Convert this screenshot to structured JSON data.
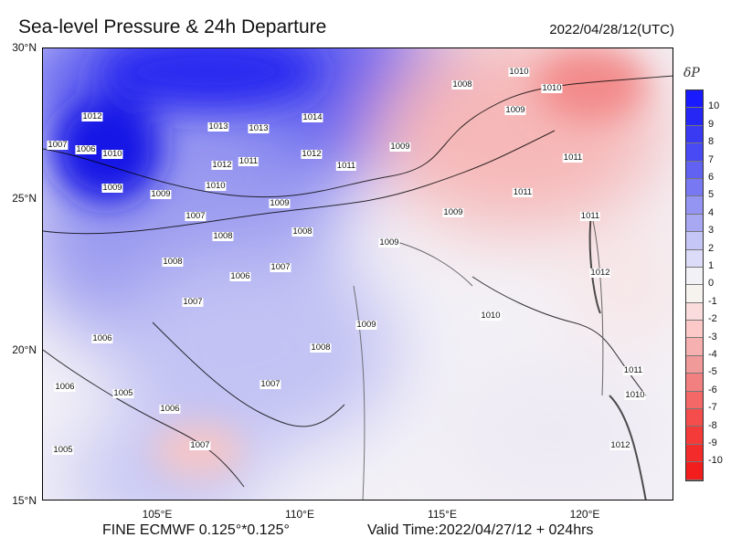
{
  "title": "Sea-level Pressure & 24h Departure",
  "date": "2022/04/28/12(UTC)",
  "footer_left": "FINE ECMWF 0.125°*0.125°",
  "footer_right": "Valid Time:2022/04/27/12 + 024hrs",
  "lat_labels": [
    "30°N",
    "25°N",
    "20°N",
    "15°N"
  ],
  "lon_labels": [
    "105°E",
    "110°E",
    "115°E",
    "120°E"
  ],
  "colorbar": {
    "title": "δP",
    "labels": [
      "10",
      "9",
      "8",
      "7",
      "6",
      "5",
      "4",
      "3",
      "2",
      "1",
      "0",
      "-1",
      "-2",
      "-3",
      "-4",
      "-5",
      "-6",
      "-7",
      "-8",
      "-9",
      "-10"
    ],
    "colors": [
      "#1a1aff",
      "#2626f5",
      "#3a3af2",
      "#4a4af4",
      "#6262f2",
      "#7878f2",
      "#9494f2",
      "#a8a8f2",
      "#c6c6f6",
      "#dcdcf8",
      "#f2f2f6",
      "#f6f2ee",
      "#fbdcdc",
      "#fcc8c8",
      "#f7b0b0",
      "#f09a9a",
      "#f38080",
      "#f56868",
      "#f54c4c",
      "#f53a3a",
      "#f42b2b",
      "#f21e1e"
    ]
  },
  "contour_labels": [
    "1012",
    "1007",
    "1006",
    "1010",
    "1009",
    "1013",
    "1013",
    "1014",
    "1011",
    "1012",
    "1012",
    "1011",
    "1010",
    "1009",
    "1009",
    "1009",
    "1008",
    "1010",
    "1010",
    "1009",
    "1011",
    "1011",
    "1011",
    "1012",
    "1008",
    "1007",
    "1008",
    "1006",
    "1007",
    "1008",
    "1007",
    "1009",
    "1009",
    "1008",
    "1007",
    "1010",
    "1011",
    "1010",
    "1012",
    "1006",
    "1005",
    "1006",
    "1007",
    "1005",
    "1006",
    "1009"
  ]
}
